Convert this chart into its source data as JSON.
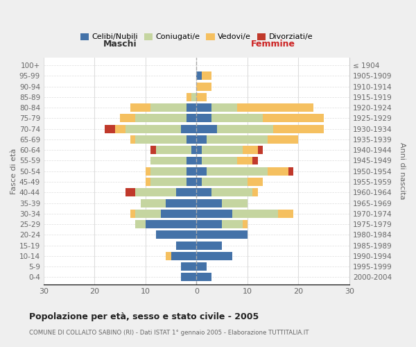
{
  "age_groups": [
    "100+",
    "95-99",
    "90-94",
    "85-89",
    "80-84",
    "75-79",
    "70-74",
    "65-69",
    "60-64",
    "55-59",
    "50-54",
    "45-49",
    "40-44",
    "35-39",
    "30-34",
    "25-29",
    "20-24",
    "15-19",
    "10-14",
    "5-9",
    "0-4"
  ],
  "birth_years": [
    "≤ 1904",
    "1905-1909",
    "1910-1914",
    "1915-1919",
    "1920-1924",
    "1925-1929",
    "1930-1934",
    "1935-1939",
    "1940-1944",
    "1945-1949",
    "1950-1954",
    "1955-1959",
    "1960-1964",
    "1965-1969",
    "1970-1974",
    "1975-1979",
    "1980-1984",
    "1985-1989",
    "1990-1994",
    "1995-1999",
    "2000-2004"
  ],
  "male_celibe": [
    0,
    0,
    0,
    0,
    2,
    2,
    3,
    2,
    1,
    2,
    2,
    2,
    4,
    6,
    7,
    10,
    8,
    4,
    5,
    3,
    3
  ],
  "male_coniugato": [
    0,
    0,
    0,
    1,
    7,
    10,
    11,
    10,
    7,
    7,
    7,
    7,
    8,
    5,
    5,
    2,
    0,
    0,
    0,
    0,
    0
  ],
  "male_vedovo": [
    0,
    0,
    0,
    1,
    4,
    3,
    2,
    1,
    0,
    0,
    1,
    1,
    0,
    0,
    1,
    0,
    0,
    0,
    1,
    0,
    0
  ],
  "male_divorziato": [
    0,
    0,
    0,
    0,
    0,
    0,
    2,
    0,
    1,
    0,
    0,
    0,
    2,
    0,
    0,
    0,
    0,
    0,
    0,
    0,
    0
  ],
  "fem_nubile": [
    0,
    1,
    0,
    0,
    3,
    3,
    4,
    2,
    1,
    1,
    2,
    1,
    3,
    5,
    7,
    5,
    10,
    5,
    7,
    2,
    3
  ],
  "fem_coniugata": [
    0,
    0,
    0,
    0,
    5,
    10,
    11,
    12,
    8,
    7,
    12,
    9,
    8,
    5,
    9,
    4,
    0,
    0,
    0,
    0,
    0
  ],
  "fem_vedova": [
    0,
    2,
    3,
    2,
    15,
    12,
    10,
    6,
    3,
    3,
    4,
    3,
    1,
    0,
    3,
    1,
    0,
    0,
    0,
    0,
    0
  ],
  "fem_divorziata": [
    0,
    0,
    0,
    0,
    0,
    0,
    0,
    0,
    1,
    1,
    1,
    0,
    0,
    0,
    0,
    0,
    0,
    0,
    0,
    0,
    0
  ],
  "color_celibe": "#4472a8",
  "color_coniugato": "#c5d5a0",
  "color_vedovo": "#f5c060",
  "color_divorziato": "#c0392b",
  "title": "Popolazione per età, sesso e stato civile - 2005",
  "subtitle": "COMUNE DI COLLALTO SABINO (RI) - Dati ISTAT 1° gennaio 2005 - Elaborazione TUTTITALIA.IT",
  "label_maschi": "Maschi",
  "label_femmine": "Femmine",
  "ylabel_left": "Fasce di età",
  "ylabel_right": "Anni di nascita",
  "legend_labels": [
    "Celibi/Nubili",
    "Coniugati/e",
    "Vedovi/e",
    "Divorziati/e"
  ],
  "xlim": 30,
  "bg_color": "#efefef",
  "plot_bg": "#ffffff",
  "grid_color": "#dddddd"
}
